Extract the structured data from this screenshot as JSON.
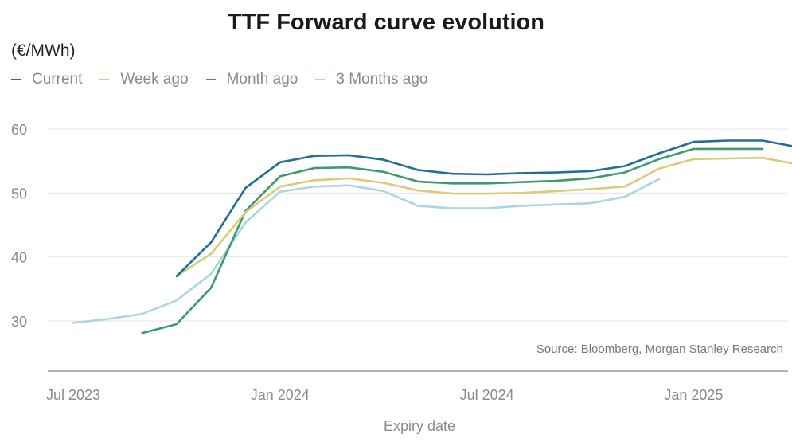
{
  "chart_data": {
    "type": "line",
    "title": "TTF Forward curve evolution",
    "ylabel": "(€/MWh)",
    "xlabel": "Expiry date",
    "source": "Source: Bloomberg, Morgan Stanley Research",
    "ylim": [
      20,
      65
    ],
    "xlim": [
      "2023-06",
      "2025-05"
    ],
    "yticks": [
      30,
      40,
      50,
      60
    ],
    "xticks": [
      {
        "value": "2023-07",
        "label": "Jul 2023"
      },
      {
        "value": "2024-01",
        "label": "Jan 2024"
      },
      {
        "value": "2024-07",
        "label": "Jul 2024"
      },
      {
        "value": "2025-01",
        "label": "Jan 2025"
      }
    ],
    "grid": "horizontal",
    "legend_position": "top-left",
    "series": [
      {
        "name": "Current",
        "color": "#1f6f99",
        "x": [
          "2023-10",
          "2023-11",
          "2023-12",
          "2024-01",
          "2024-02",
          "2024-03",
          "2024-04",
          "2024-05",
          "2024-06",
          "2024-07",
          "2024-08",
          "2024-09",
          "2024-10",
          "2024-11",
          "2024-12",
          "2025-01",
          "2025-02",
          "2025-03",
          "2025-04"
        ],
        "y": [
          37.0,
          42.3,
          50.8,
          54.8,
          55.8,
          55.9,
          55.2,
          53.6,
          53.0,
          52.9,
          53.1,
          53.2,
          53.4,
          54.2,
          56.2,
          58.0,
          58.2,
          58.2,
          57.2
        ]
      },
      {
        "name": "Week ago",
        "color": "#d9cc78",
        "x": [
          "2023-10",
          "2023-11",
          "2023-12",
          "2024-01",
          "2024-02",
          "2024-03",
          "2024-04",
          "2024-05",
          "2024-06",
          "2024-07",
          "2024-08",
          "2024-09",
          "2024-10",
          "2024-11",
          "2024-12",
          "2025-01",
          "2025-02",
          "2025-03",
          "2025-04"
        ],
        "y": [
          37.0,
          40.5,
          47.0,
          51.0,
          52.0,
          52.3,
          51.6,
          50.4,
          49.9,
          49.9,
          50.0,
          50.3,
          50.6,
          51.0,
          53.8,
          55.3,
          55.4,
          55.5,
          54.5
        ]
      },
      {
        "name": "Month ago",
        "color": "#3e9a6a",
        "x": [
          "2023-09",
          "2023-10",
          "2023-11",
          "2023-12",
          "2024-01",
          "2024-02",
          "2024-03",
          "2024-04",
          "2024-05",
          "2024-06",
          "2024-07",
          "2024-08",
          "2024-09",
          "2024-10",
          "2024-11",
          "2024-12",
          "2025-01",
          "2025-02",
          "2025-03"
        ],
        "y": [
          28.1,
          29.5,
          35.2,
          47.2,
          52.6,
          53.9,
          54.0,
          53.3,
          51.8,
          51.5,
          51.5,
          51.7,
          51.9,
          52.3,
          53.2,
          55.3,
          56.9,
          56.9,
          56.9
        ]
      },
      {
        "name": "3 Months ago",
        "color": "#a9d6df",
        "x": [
          "2023-07",
          "2023-08",
          "2023-09",
          "2023-10",
          "2023-11",
          "2023-12",
          "2024-01",
          "2024-02",
          "2024-03",
          "2024-04",
          "2024-05",
          "2024-06",
          "2024-07",
          "2024-08",
          "2024-09",
          "2024-10",
          "2024-11",
          "2024-12"
        ],
        "y": [
          29.7,
          30.3,
          31.1,
          33.2,
          37.4,
          45.4,
          50.2,
          51.0,
          51.2,
          50.3,
          48.0,
          47.6,
          47.6,
          48.0,
          48.2,
          48.4,
          49.4,
          52.2
        ]
      }
    ]
  }
}
